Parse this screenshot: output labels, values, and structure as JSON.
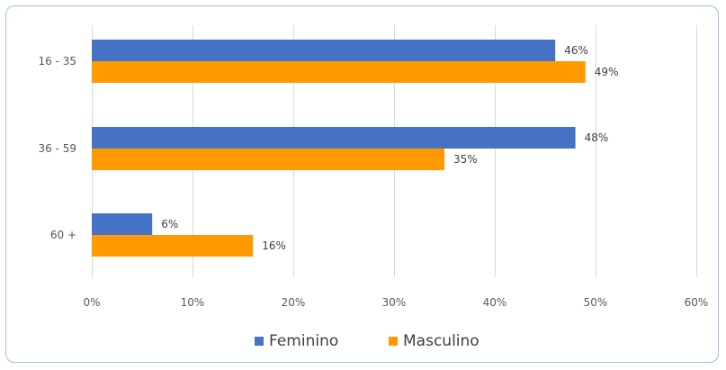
{
  "chart_data": {
    "type": "bar",
    "orientation": "horizontal",
    "categories": [
      "16 - 35",
      "36 - 59",
      "60 +"
    ],
    "series": [
      {
        "name": "Feminino",
        "values": [
          46,
          48,
          6
        ],
        "labels": [
          "46%",
          "48%",
          "6%"
        ],
        "color": "#4472c4"
      },
      {
        "name": "Masculino",
        "values": [
          49,
          35,
          16
        ],
        "labels": [
          "49%",
          "35%",
          "16%"
        ],
        "color": "#ff9900"
      }
    ],
    "xlim": [
      0,
      60
    ],
    "x_ticks": [
      0,
      10,
      20,
      30,
      40,
      50,
      60
    ],
    "x_tick_labels": [
      "0%",
      "10%",
      "20%",
      "30%",
      "40%",
      "50%",
      "60%"
    ],
    "grid": true,
    "gridline_color": "#d9d9d9",
    "legend_position": "bottom",
    "title": "",
    "xlabel": "",
    "ylabel": ""
  }
}
